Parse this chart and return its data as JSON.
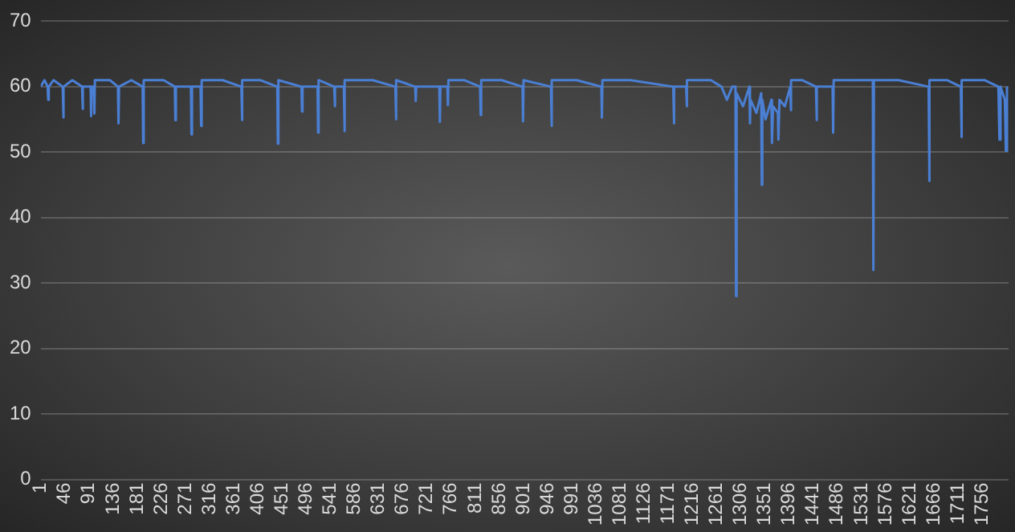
{
  "chart_data": {
    "type": "line",
    "x": [
      1,
      8,
      14,
      15,
      16,
      25,
      42,
      43,
      44,
      60,
      78,
      79,
      80,
      94,
      95,
      96,
      100,
      101,
      102,
      130,
      145,
      146,
      147,
      170,
      191,
      192,
      193,
      230,
      251,
      252,
      253,
      281,
      282,
      283,
      299,
      300,
      301,
      340,
      375,
      376,
      377,
      410,
      442,
      443,
      444,
      487,
      488,
      489,
      517,
      518,
      519,
      548,
      549,
      550,
      566,
      567,
      568,
      620,
      662,
      663,
      664,
      699,
      700,
      701,
      744,
      745,
      746,
      759,
      760,
      761,
      790,
      820,
      821,
      822,
      860,
      899,
      900,
      901,
      952,
      953,
      954,
      1000,
      1046,
      1047,
      1048,
      1100,
      1180,
      1181,
      1182,
      1204,
      1205,
      1206,
      1250,
      1270,
      1280,
      1290,
      1296,
      1297,
      1298,
      1310,
      1322,
      1323,
      1324,
      1335,
      1344,
      1345,
      1346,
      1352,
      1363,
      1364,
      1366,
      1375,
      1376,
      1378,
      1388,
      1398,
      1399,
      1400,
      1420,
      1446,
      1447,
      1448,
      1477,
      1478,
      1479,
      1520,
      1552,
      1553,
      1554,
      1600,
      1656,
      1657,
      1658,
      1690,
      1716,
      1717,
      1718,
      1760,
      1786,
      1788,
      1790,
      1798,
      1800,
      1802
    ],
    "series": [
      {
        "color": "#4a7fd4",
        "values": [
          60,
          61,
          60,
          58,
          60,
          61,
          60,
          55.3,
          60,
          61,
          60,
          56.6,
          60,
          60,
          55.5,
          60,
          60,
          55.9,
          61,
          61,
          60,
          54.4,
          60,
          61,
          60,
          51.4,
          61,
          61,
          60,
          54.9,
          60,
          60,
          52.7,
          60,
          60,
          54,
          61,
          61,
          60,
          54.9,
          61,
          61,
          60,
          51.3,
          61,
          60,
          56.2,
          60,
          60,
          53,
          61,
          60,
          57,
          60,
          60,
          53.2,
          61,
          61,
          60,
          55,
          61,
          60,
          57.8,
          60,
          60,
          54.6,
          60,
          60,
          57.2,
          61,
          61,
          60,
          55.7,
          61,
          61,
          60,
          54.7,
          61,
          60,
          54,
          61,
          61,
          60,
          55.3,
          61,
          61,
          60,
          54.4,
          60,
          60,
          57,
          61,
          61,
          60,
          58,
          60,
          60,
          28,
          59,
          57,
          60,
          54.4,
          58,
          56,
          59,
          45,
          58,
          55,
          58,
          51.4,
          57,
          56,
          51.9,
          58,
          57,
          60,
          56.4,
          61,
          61,
          60,
          54.9,
          60,
          60,
          53,
          61,
          61,
          61,
          32,
          61,
          61,
          60,
          45.6,
          61,
          61,
          60,
          52.3,
          61,
          61,
          60,
          51.9,
          60,
          58,
          50.2,
          60
        ]
      }
    ],
    "xlim": [
      1,
      1805
    ],
    "xticks": [
      1,
      46,
      91,
      136,
      181,
      226,
      271,
      316,
      361,
      406,
      451,
      496,
      541,
      586,
      631,
      676,
      721,
      766,
      811,
      856,
      901,
      946,
      991,
      1036,
      1081,
      1126,
      1171,
      1216,
      1261,
      1306,
      1351,
      1396,
      1441,
      1486,
      1531,
      1576,
      1621,
      1666,
      1711,
      1756
    ],
    "ylim": [
      0,
      70
    ],
    "yticks": [
      0,
      10,
      20,
      30,
      40,
      50,
      60,
      70
    ],
    "grid": "y",
    "marker": "none",
    "line_style": "solid",
    "legend": false
  }
}
